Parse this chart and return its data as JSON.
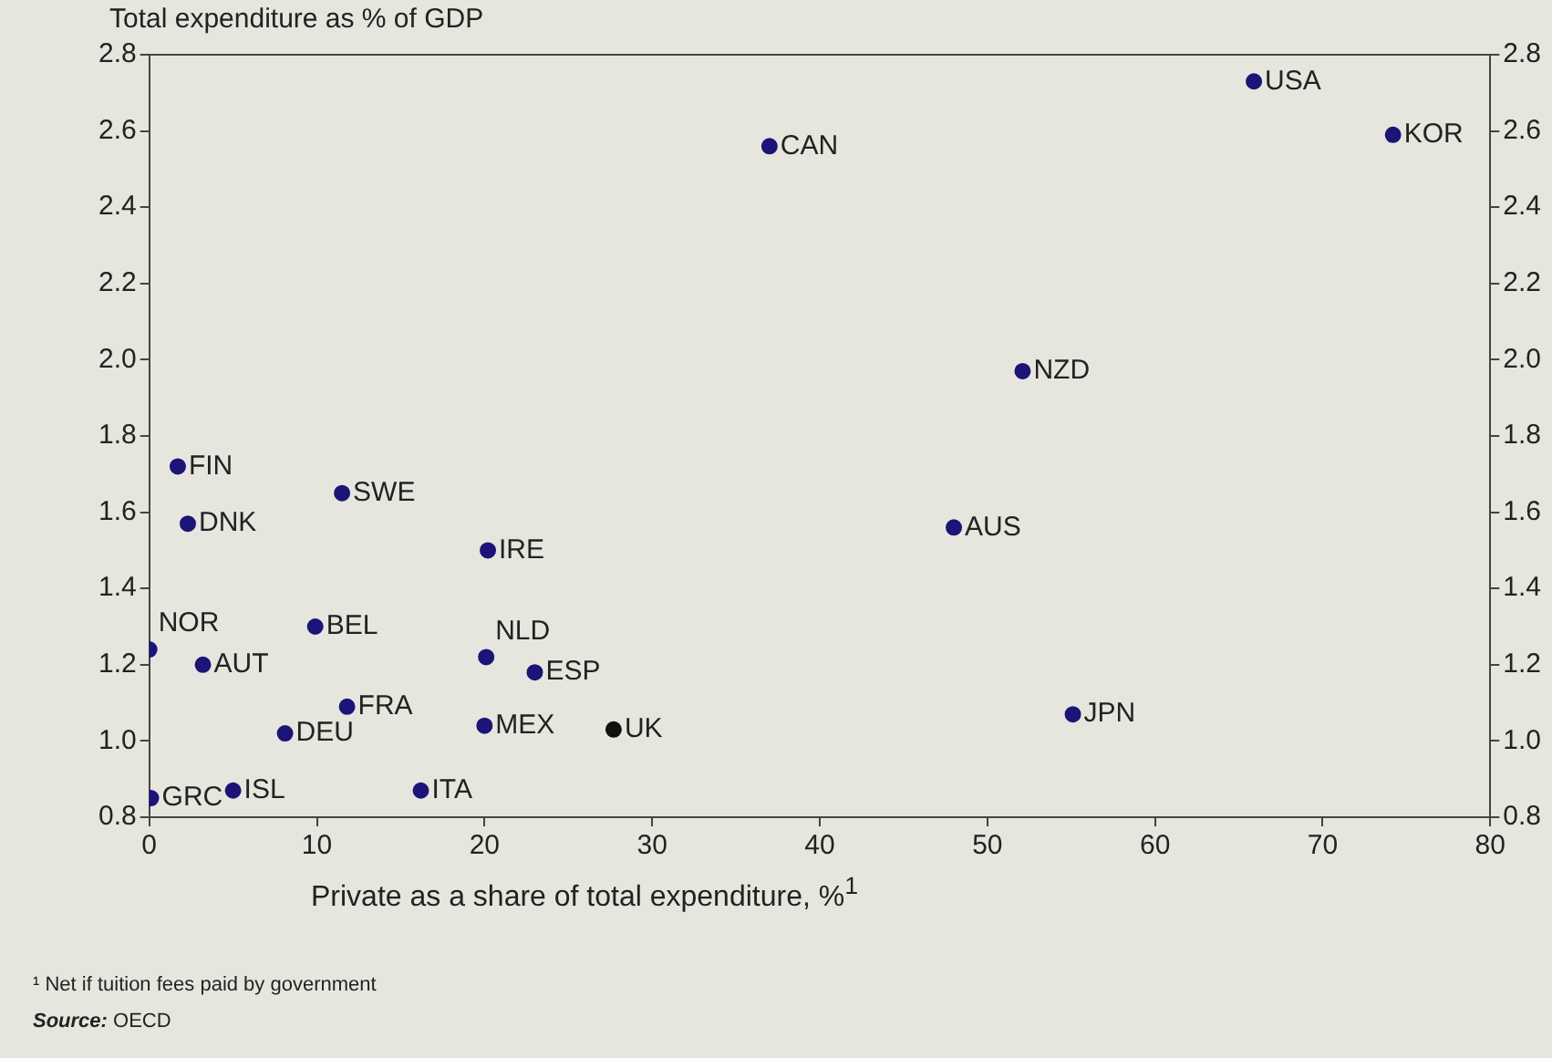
{
  "chart_data": {
    "type": "scatter",
    "ylabel": "Total expenditure as % of GDP",
    "xlabel": "Private as a share of total expenditure, %$^{1}$",
    "series": [
      {
        "x": [
          1.7,
          2.3,
          11.5,
          20.2,
          0,
          3.2,
          9.9,
          20.1,
          23.0,
          11.8,
          8.1,
          20.0,
          27.7,
          0.1,
          5.0,
          16.2,
          37.0,
          65.9,
          74.2,
          52.1,
          48.0,
          55.1
        ],
        "values": [
          1.72,
          1.57,
          1.65,
          1.5,
          1.24,
          1.2,
          1.3,
          1.22,
          1.18,
          1.09,
          1.02,
          1.04,
          1.03,
          0.85,
          0.87,
          0.87,
          2.56,
          2.73,
          2.59,
          1.97,
          1.56,
          1.07
        ],
        "colors": [
          "#1c1478",
          "#1c1478",
          "#1c1478",
          "#1c1478",
          "#1c1478",
          "#1c1478",
          "#1c1478",
          "#1c1478",
          "#1c1478",
          "#1c1478",
          "#1c1478",
          "#1c1478",
          "#111111",
          "#1c1478",
          "#1c1478",
          "#1c1478",
          "#1c1478",
          "#1c1478",
          "#1c1478",
          "#1c1478",
          "#1c1478",
          "#1c1478"
        ]
      }
    ],
    "xlim": [
      0,
      80
    ],
    "xticks": [
      0,
      10,
      20,
      30,
      40,
      50,
      60,
      70,
      80
    ],
    "ylim": [
      0.8,
      2.8
    ],
    "yticks": [
      {
        "value": 0.8,
        "label": "0.8"
      },
      {
        "value": 1.0,
        "label": "1.0"
      },
      {
        "value": 1.2,
        "label": "1.2"
      },
      {
        "value": 1.4,
        "label": "1.4"
      },
      {
        "value": 1.6,
        "label": "1.6"
      },
      {
        "value": 1.8,
        "label": "1.8"
      },
      {
        "value": 2.0,
        "label": "2.0"
      },
      {
        "value": 2.2,
        "label": "2.2"
      },
      {
        "value": 2.4,
        "label": "2.4"
      },
      {
        "value": 2.6,
        "label": "2.6"
      },
      {
        "value": 2.8,
        "label": "2.8"
      }
    ],
    "y2lim": [
      0.8,
      2.8
    ],
    "y2ticks": [
      {
        "value": 0.8,
        "label": "0.8"
      },
      {
        "value": 1.0,
        "label": "1.0"
      },
      {
        "value": 1.2,
        "label": "1.2"
      },
      {
        "value": 1.4,
        "label": "1.4"
      },
      {
        "value": 1.6,
        "label": "1.6"
      },
      {
        "value": 1.8,
        "label": "1.8"
      },
      {
        "value": 2.0,
        "label": "2.0"
      },
      {
        "value": 2.2,
        "label": "2.2"
      },
      {
        "value": 2.4,
        "label": "2.4"
      },
      {
        "value": 2.6,
        "label": "2.6"
      },
      {
        "value": 2.8,
        "label": "2.8"
      }
    ],
    "marker": "circle",
    "grid": false,
    "legend": false,
    "annotations": [
      {
        "text": "FIN",
        "x": 1.7,
        "y": 1.72
      },
      {
        "text": "DNK",
        "x": 2.3,
        "y": 1.57
      },
      {
        "text": "SWE",
        "x": 11.5,
        "y": 1.65
      },
      {
        "text": "IRE",
        "x": 20.2,
        "y": 1.5
      },
      {
        "text": "NOR",
        "x": 0,
        "y": 1.24
      },
      {
        "text": "AUT",
        "x": 3.2,
        "y": 1.2
      },
      {
        "text": "BEL",
        "x": 9.9,
        "y": 1.3
      },
      {
        "text": "NLD",
        "x": 20.1,
        "y": 1.22
      },
      {
        "text": "ESP",
        "x": 23.0,
        "y": 1.18
      },
      {
        "text": "FRA",
        "x": 11.8,
        "y": 1.09
      },
      {
        "text": "DEU",
        "x": 8.1,
        "y": 1.02
      },
      {
        "text": "MEX",
        "x": 20.0,
        "y": 1.04
      },
      {
        "text": "UK",
        "x": 27.7,
        "y": 1.03
      },
      {
        "text": "GRC",
        "x": 0.1,
        "y": 0.85
      },
      {
        "text": "ISL",
        "x": 5.0,
        "y": 0.87
      },
      {
        "text": "ITA",
        "x": 16.2,
        "y": 0.87
      },
      {
        "text": "CAN",
        "x": 37.0,
        "y": 2.56
      },
      {
        "text": "USA",
        "x": 65.9,
        "y": 2.73
      },
      {
        "text": "KOR",
        "x": 74.2,
        "y": 2.59
      },
      {
        "text": "NZD",
        "x": 52.1,
        "y": 1.97
      },
      {
        "text": "AUS",
        "x": 48.0,
        "y": 1.56
      },
      {
        "text": "JPN",
        "x": 55.1,
        "y": 1.07
      },
      "¹ Net if tuition fees paid by government",
      "Source: OECD"
    ]
  }
}
